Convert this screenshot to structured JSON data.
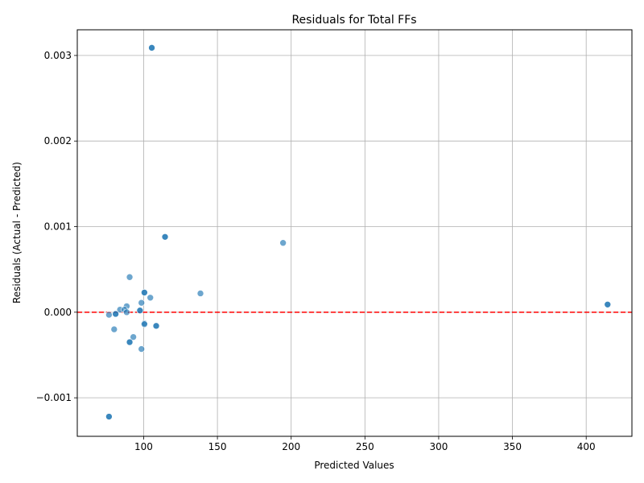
{
  "chart_data": {
    "type": "scatter",
    "title": "Residuals for Total FFs",
    "xlabel": "Predicted Values",
    "ylabel": "Residuals (Actual - Predicted)",
    "xlim": [
      55,
      431
    ],
    "ylim": [
      -0.00145,
      0.0033
    ],
    "xticks": [
      100,
      150,
      200,
      250,
      300,
      350,
      400
    ],
    "xtick_labels": [
      "100",
      "150",
      "200",
      "250",
      "300",
      "350",
      "400"
    ],
    "yticks": [
      -0.001,
      0.0,
      0.001,
      0.002,
      0.003
    ],
    "ytick_labels": [
      "−0.001",
      "0.000",
      "0.001",
      "0.002",
      "0.003"
    ],
    "grid": true,
    "reference_line": {
      "y": 0,
      "color": "#ff0000",
      "style": "dashed"
    },
    "marker_color": "#1f77b4",
    "marker_alpha": 0.65,
    "points": [
      {
        "x": 105.5,
        "y": 0.00309
      },
      {
        "x": 105.5,
        "y": 0.00309
      },
      {
        "x": 114.5,
        "y": 0.00088
      },
      {
        "x": 114.5,
        "y": 0.00088
      },
      {
        "x": 194.5,
        "y": 0.00081
      },
      {
        "x": 90.5,
        "y": 0.00041
      },
      {
        "x": 100.5,
        "y": 0.00023
      },
      {
        "x": 100.5,
        "y": 0.00023
      },
      {
        "x": 138.5,
        "y": 0.00022
      },
      {
        "x": 104.5,
        "y": 0.00017
      },
      {
        "x": 98.5,
        "y": 0.00011
      },
      {
        "x": 414.5,
        "y": 9e-05
      },
      {
        "x": 414.5,
        "y": 9e-05
      },
      {
        "x": 88.5,
        "y": 7e-05
      },
      {
        "x": 84.0,
        "y": 3e-05
      },
      {
        "x": 87.0,
        "y": 3e-05
      },
      {
        "x": 97.5,
        "y": 2e-05
      },
      {
        "x": 97.5,
        "y": 2e-05
      },
      {
        "x": 88.5,
        "y": 0.0
      },
      {
        "x": 81.0,
        "y": -2e-05
      },
      {
        "x": 81.0,
        "y": -2e-05
      },
      {
        "x": 76.5,
        "y": -3e-05
      },
      {
        "x": 100.5,
        "y": -0.00013
      },
      {
        "x": 100.5,
        "y": -0.00014
      },
      {
        "x": 108.5,
        "y": -0.00016
      },
      {
        "x": 108.5,
        "y": -0.00016
      },
      {
        "x": 80.0,
        "y": -0.0002
      },
      {
        "x": 93.0,
        "y": -0.00029
      },
      {
        "x": 90.5,
        "y": -0.00035
      },
      {
        "x": 90.5,
        "y": -0.00035
      },
      {
        "x": 98.5,
        "y": -0.00043
      },
      {
        "x": 76.5,
        "y": -0.00122
      },
      {
        "x": 76.5,
        "y": -0.00122
      }
    ]
  }
}
